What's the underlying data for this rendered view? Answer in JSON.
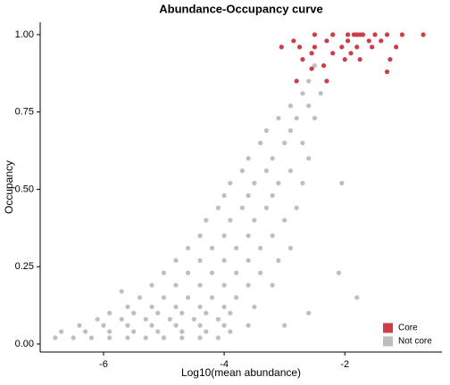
{
  "chart_data": {
    "type": "scatter",
    "title": "Abundance-Occupancy curve",
    "x_label": "Log10(mean abundance)",
    "y_label": "Occupancy",
    "xlim": [
      -7.05,
      -0.39
    ],
    "ylim": [
      -0.026,
      1.04
    ],
    "xticks": [
      -6,
      -4,
      -2
    ],
    "yticks": [
      {
        "value": 0,
        "label": "0.00"
      },
      {
        "value": 0.25,
        "label": "0.25"
      },
      {
        "value": 0.5,
        "label": "0.50"
      },
      {
        "value": 0.75,
        "label": "0.75"
      },
      {
        "value": 1,
        "label": "1.00"
      }
    ],
    "legend": "bottom-right",
    "series": [
      {
        "name": "Core",
        "color": "#cc3d4a",
        "x": [
          -2.5,
          -2.2,
          -1.95,
          -1.85,
          -1.8,
          -1.75,
          -1.7,
          -1.5,
          -1.3,
          -1.05,
          -0.7,
          -2.85,
          -2.3,
          -1.95,
          -1.6,
          -1.4,
          -3.05,
          -2.75,
          -2.5,
          -2.05,
          -1.8,
          -1.55,
          -1.15,
          -2.7,
          -2.55,
          -2.2,
          -2.0,
          -1.9,
          -2.35,
          -1.75,
          -1.25,
          -2.55,
          -2.8,
          -2.3,
          -1.3
        ],
        "values": [
          1,
          1,
          1,
          1,
          1,
          1,
          1,
          1,
          1,
          1,
          1,
          0.98,
          0.98,
          0.98,
          0.98,
          0.98,
          0.96,
          0.96,
          0.96,
          0.96,
          0.96,
          0.96,
          0.96,
          0.92,
          0.94,
          0.94,
          0.92,
          0.94,
          0.9,
          0.92,
          0.92,
          0.89,
          0.85,
          0.85,
          0.88
        ]
      },
      {
        "name": "Not core",
        "color": "#bebebe",
        "x": [
          -6.8,
          -6.5,
          -6.2,
          -5.9,
          -5.6,
          -5.3,
          -5.0,
          -4.7,
          -4.4,
          -4.1,
          -6.7,
          -6.3,
          -5.9,
          -5.5,
          -5.1,
          -4.7,
          -4.3,
          -3.9,
          -6.4,
          -6.0,
          -5.6,
          -5.2,
          -4.8,
          -4.4,
          -4.0,
          -3.6,
          -6.1,
          -5.7,
          -5.3,
          -4.9,
          -4.5,
          -4.1,
          -5.9,
          -5.5,
          -5.1,
          -4.7,
          -4.3,
          -3.9,
          -5.6,
          -5.2,
          -4.8,
          -4.4,
          -4.0,
          -3.5,
          -5.4,
          -5.0,
          -4.6,
          -4.2,
          -3.8,
          -5.2,
          -4.8,
          -4.4,
          -4.0,
          -3.6,
          -3.2,
          -5.0,
          -4.6,
          -4.2,
          -3.8,
          -3.4,
          -4.8,
          -4.4,
          -4.0,
          -3.6,
          -3.1,
          -4.6,
          -4.2,
          -3.8,
          -3.4,
          -2.9,
          -4.4,
          -4.0,
          -3.6,
          -3.2,
          -4.3,
          -3.9,
          -3.5,
          -3.0,
          -4.1,
          -3.7,
          -3.3,
          -2.8,
          -4.0,
          -3.6,
          -3.2,
          -3.9,
          -3.5,
          -3.1,
          -2.7,
          -3.7,
          -3.3,
          -2.9,
          -3.6,
          -3.2,
          -2.6,
          -3.4,
          -3.0,
          -2.7,
          -3.3,
          -2.9,
          -3.1,
          -2.8,
          -2.5,
          -2.9,
          -2.6,
          -2.7,
          -2.4,
          -2.6,
          -2.5,
          -2.05,
          -1.8,
          -2.1,
          -5.7,
          -3.0,
          -2.6
        ],
        "values": [
          0.02,
          0.02,
          0.02,
          0.02,
          0.02,
          0.02,
          0.02,
          0.02,
          0.02,
          0.02,
          0.04,
          0.04,
          0.04,
          0.04,
          0.04,
          0.04,
          0.04,
          0.04,
          0.06,
          0.06,
          0.06,
          0.06,
          0.06,
          0.06,
          0.06,
          0.06,
          0.08,
          0.08,
          0.08,
          0.08,
          0.08,
          0.08,
          0.1,
          0.1,
          0.1,
          0.1,
          0.1,
          0.1,
          0.12,
          0.12,
          0.12,
          0.12,
          0.12,
          0.12,
          0.15,
          0.15,
          0.15,
          0.15,
          0.15,
          0.19,
          0.19,
          0.19,
          0.19,
          0.19,
          0.19,
          0.23,
          0.23,
          0.23,
          0.23,
          0.23,
          0.27,
          0.27,
          0.27,
          0.27,
          0.27,
          0.31,
          0.31,
          0.31,
          0.31,
          0.31,
          0.35,
          0.35,
          0.35,
          0.35,
          0.4,
          0.4,
          0.4,
          0.4,
          0.44,
          0.44,
          0.44,
          0.44,
          0.48,
          0.48,
          0.48,
          0.52,
          0.52,
          0.52,
          0.52,
          0.56,
          0.56,
          0.56,
          0.6,
          0.6,
          0.6,
          0.65,
          0.65,
          0.65,
          0.69,
          0.69,
          0.73,
          0.73,
          0.73,
          0.77,
          0.77,
          0.81,
          0.81,
          0.85,
          0.9,
          0.52,
          0.15,
          0.23,
          0.17,
          0.06,
          0.1
        ]
      }
    ]
  }
}
